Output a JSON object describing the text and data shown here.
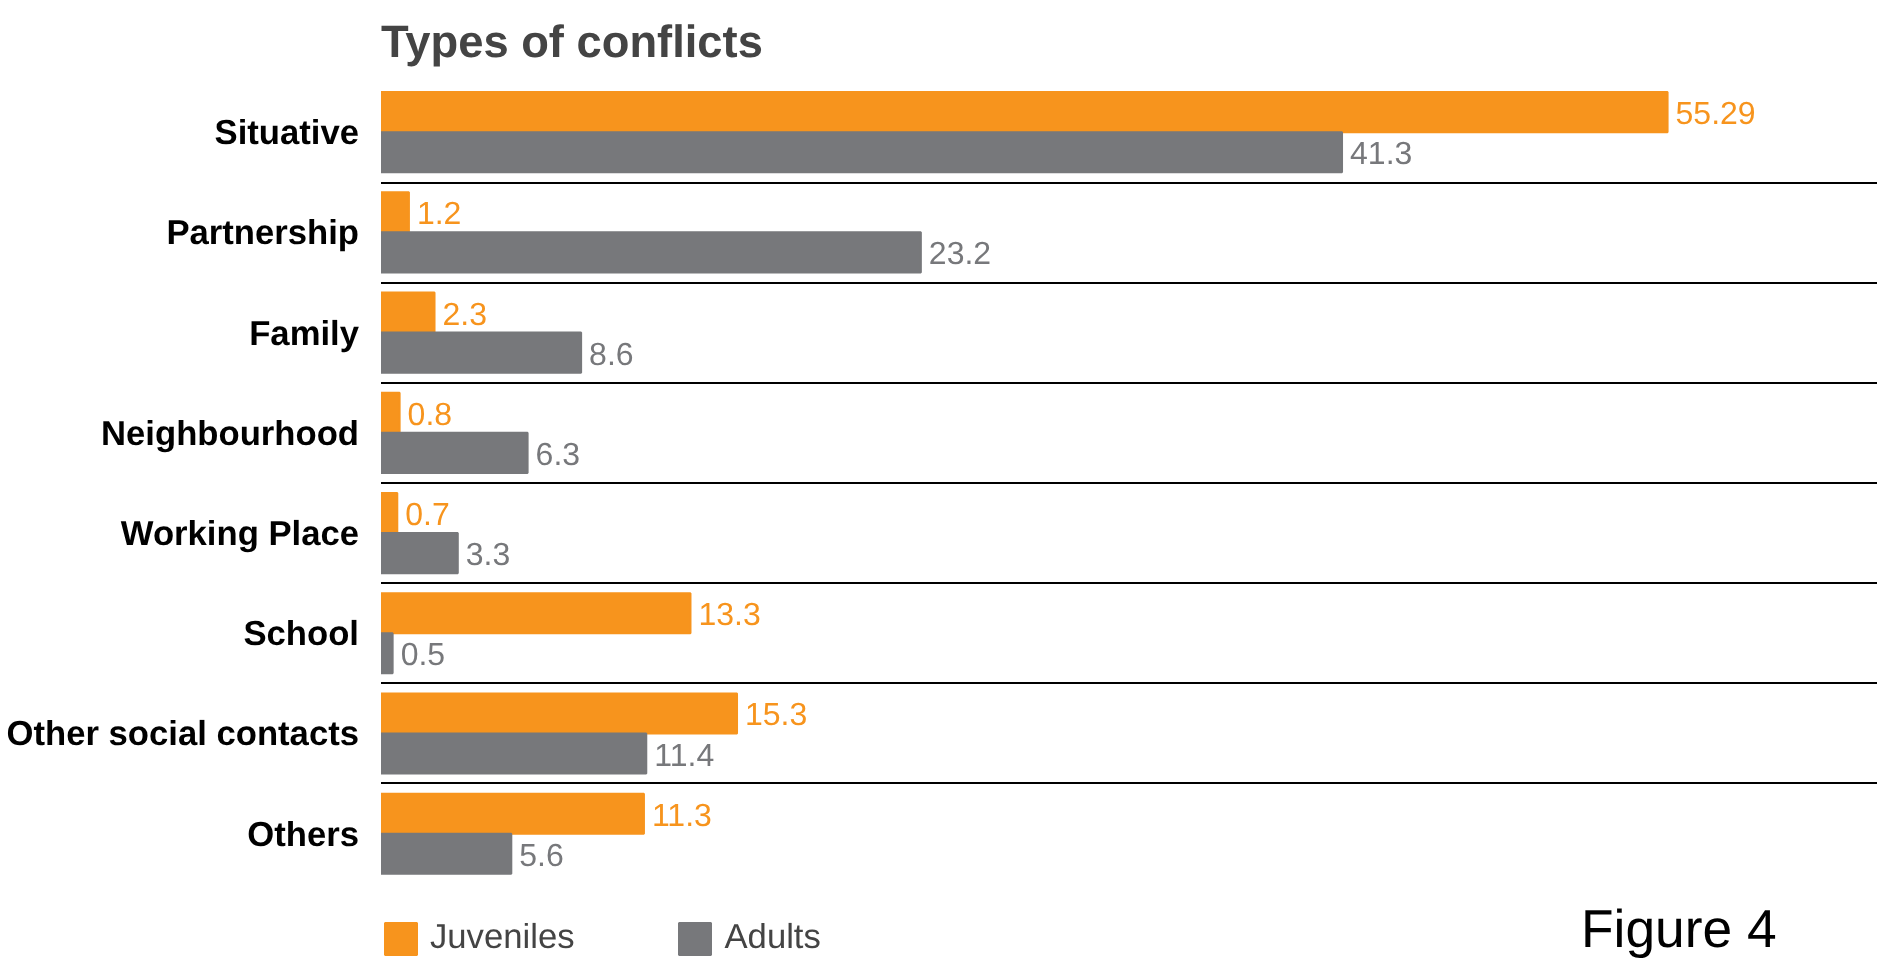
{
  "chart_data": {
    "type": "bar",
    "orientation": "horizontal",
    "title": "Types of conflicts",
    "categories": [
      "Situative",
      "Partnership",
      "Family",
      "Neighbourhood",
      "Working Place",
      "School",
      "Other social contacts",
      "Others"
    ],
    "series": [
      {
        "name": "Juveniles",
        "color": "#f7941d",
        "values": [
          55.29,
          1.2,
          2.3,
          0.8,
          0.7,
          13.3,
          15.3,
          11.3
        ]
      },
      {
        "name": "Adults",
        "color": "#77787b",
        "values": [
          41.3,
          23.2,
          8.6,
          6.3,
          3.3,
          0.5,
          11.4,
          5.6
        ]
      }
    ],
    "xlim": [
      0,
      55.29
    ],
    "grid": "y",
    "data_labels": true,
    "legend": "bottom",
    "tick_labels": "y",
    "annotations": [
      "Figure 4"
    ]
  }
}
